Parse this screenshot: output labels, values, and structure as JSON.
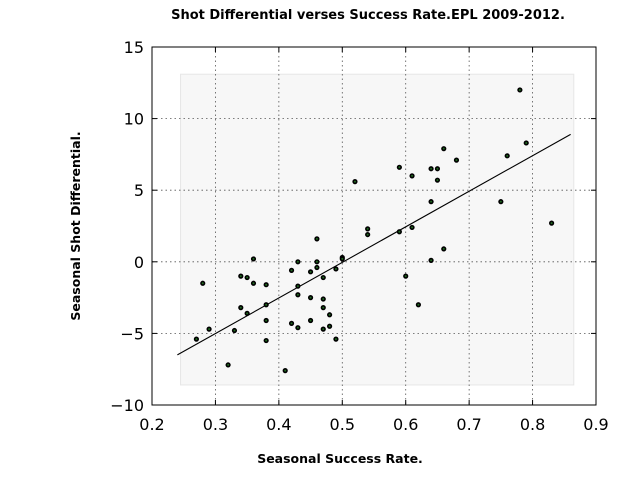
{
  "chart_data": {
    "type": "scatter",
    "title": "Shot Differential verses Success Rate.EPL 2009-2012.",
    "xlabel": "Seasonal Success Rate.",
    "ylabel": "Seasonal Shot Differential.",
    "xlim": [
      0.2,
      0.9
    ],
    "ylim": [
      -10,
      15
    ],
    "xticks": [
      0.2,
      0.3,
      0.4,
      0.5,
      0.6,
      0.7,
      0.8,
      0.9
    ],
    "xtick_labels": [
      "0.2",
      "0.3",
      "0.4",
      "0.5",
      "0.6",
      "0.7",
      "0.8",
      "0.9"
    ],
    "yticks": [
      -10,
      -5,
      0,
      5,
      10,
      15
    ],
    "ytick_labels": [
      "−10",
      "−5",
      "0",
      "5",
      "10",
      "15"
    ],
    "grid": true,
    "band": {
      "x": [
        0.245,
        0.865
      ],
      "y": [
        -8.6,
        13.1
      ]
    },
    "fit_line": {
      "x": [
        0.24,
        0.86
      ],
      "y": [
        -6.5,
        8.9
      ]
    },
    "points": [
      {
        "x": 0.27,
        "y": -5.4
      },
      {
        "x": 0.28,
        "y": -1.5
      },
      {
        "x": 0.29,
        "y": -4.7
      },
      {
        "x": 0.32,
        "y": -7.2
      },
      {
        "x": 0.33,
        "y": -4.8
      },
      {
        "x": 0.34,
        "y": -3.2
      },
      {
        "x": 0.34,
        "y": -1.0
      },
      {
        "x": 0.35,
        "y": -1.1
      },
      {
        "x": 0.35,
        "y": -3.6
      },
      {
        "x": 0.36,
        "y": 0.2
      },
      {
        "x": 0.36,
        "y": -1.5
      },
      {
        "x": 0.38,
        "y": -1.6
      },
      {
        "x": 0.38,
        "y": -3.0
      },
      {
        "x": 0.38,
        "y": -4.1
      },
      {
        "x": 0.38,
        "y": -5.5
      },
      {
        "x": 0.41,
        "y": -7.6
      },
      {
        "x": 0.42,
        "y": -0.6
      },
      {
        "x": 0.42,
        "y": -4.3
      },
      {
        "x": 0.43,
        "y": 0.0
      },
      {
        "x": 0.43,
        "y": -1.7
      },
      {
        "x": 0.43,
        "y": -2.3
      },
      {
        "x": 0.43,
        "y": -4.6
      },
      {
        "x": 0.45,
        "y": -0.7
      },
      {
        "x": 0.45,
        "y": -2.5
      },
      {
        "x": 0.45,
        "y": -4.1
      },
      {
        "x": 0.46,
        "y": 1.6
      },
      {
        "x": 0.46,
        "y": 0.0
      },
      {
        "x": 0.46,
        "y": -0.4
      },
      {
        "x": 0.47,
        "y": -1.1
      },
      {
        "x": 0.47,
        "y": -2.6
      },
      {
        "x": 0.47,
        "y": -3.2
      },
      {
        "x": 0.47,
        "y": -4.7
      },
      {
        "x": 0.48,
        "y": -3.7
      },
      {
        "x": 0.48,
        "y": -4.5
      },
      {
        "x": 0.49,
        "y": -0.5
      },
      {
        "x": 0.49,
        "y": -5.4
      },
      {
        "x": 0.5,
        "y": 0.3
      },
      {
        "x": 0.5,
        "y": 0.2
      },
      {
        "x": 0.52,
        "y": 5.6
      },
      {
        "x": 0.54,
        "y": 2.3
      },
      {
        "x": 0.54,
        "y": 1.9
      },
      {
        "x": 0.59,
        "y": 6.6
      },
      {
        "x": 0.59,
        "y": 2.1
      },
      {
        "x": 0.6,
        "y": -1.0
      },
      {
        "x": 0.61,
        "y": 6.0
      },
      {
        "x": 0.61,
        "y": 2.4
      },
      {
        "x": 0.62,
        "y": -3.0
      },
      {
        "x": 0.64,
        "y": 6.5
      },
      {
        "x": 0.64,
        "y": 4.2
      },
      {
        "x": 0.64,
        "y": 0.1
      },
      {
        "x": 0.65,
        "y": 6.5
      },
      {
        "x": 0.65,
        "y": 5.7
      },
      {
        "x": 0.66,
        "y": 7.9
      },
      {
        "x": 0.66,
        "y": 0.9
      },
      {
        "x": 0.68,
        "y": 7.1
      },
      {
        "x": 0.75,
        "y": 4.2
      },
      {
        "x": 0.76,
        "y": 7.4
      },
      {
        "x": 0.78,
        "y": 12.0
      },
      {
        "x": 0.79,
        "y": 8.3
      },
      {
        "x": 0.83,
        "y": 2.7
      }
    ]
  }
}
